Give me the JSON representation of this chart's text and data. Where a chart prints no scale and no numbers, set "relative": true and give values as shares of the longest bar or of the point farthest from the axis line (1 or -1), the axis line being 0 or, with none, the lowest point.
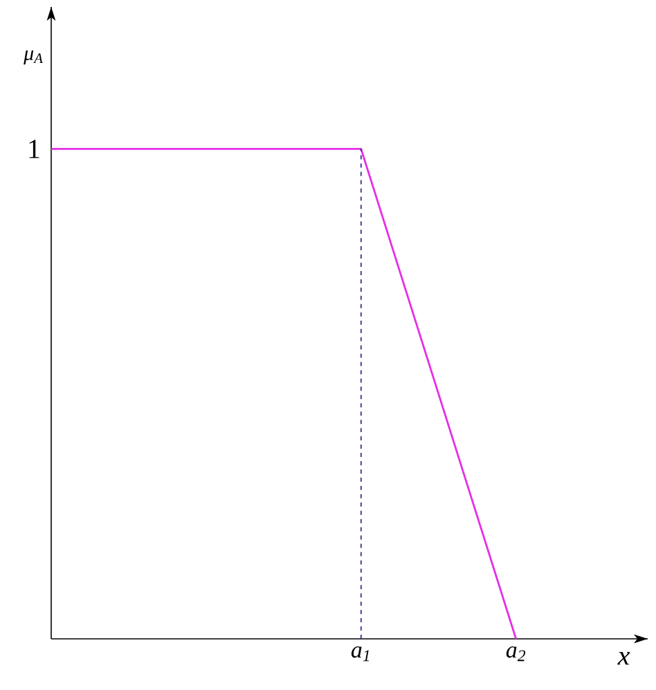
{
  "chart_data": {
    "type": "line",
    "xlabel": "x",
    "ylabel": "μ$_{A}$",
    "relative": true,
    "categories": [
      null,
      null,
      "a$_{1}$",
      "a$_{2}$"
    ],
    "values": [
      1,
      1,
      1,
      0
    ],
    "color": "#e62ee6",
    "line_style": "solid",
    "ref_lines": [
      {
        "axis": "x",
        "value": "a$_{1}$",
        "color": "#1a1a8c",
        "line_style": "dashed"
      }
    ],
    "annotations": [
      "1"
    ]
  }
}
